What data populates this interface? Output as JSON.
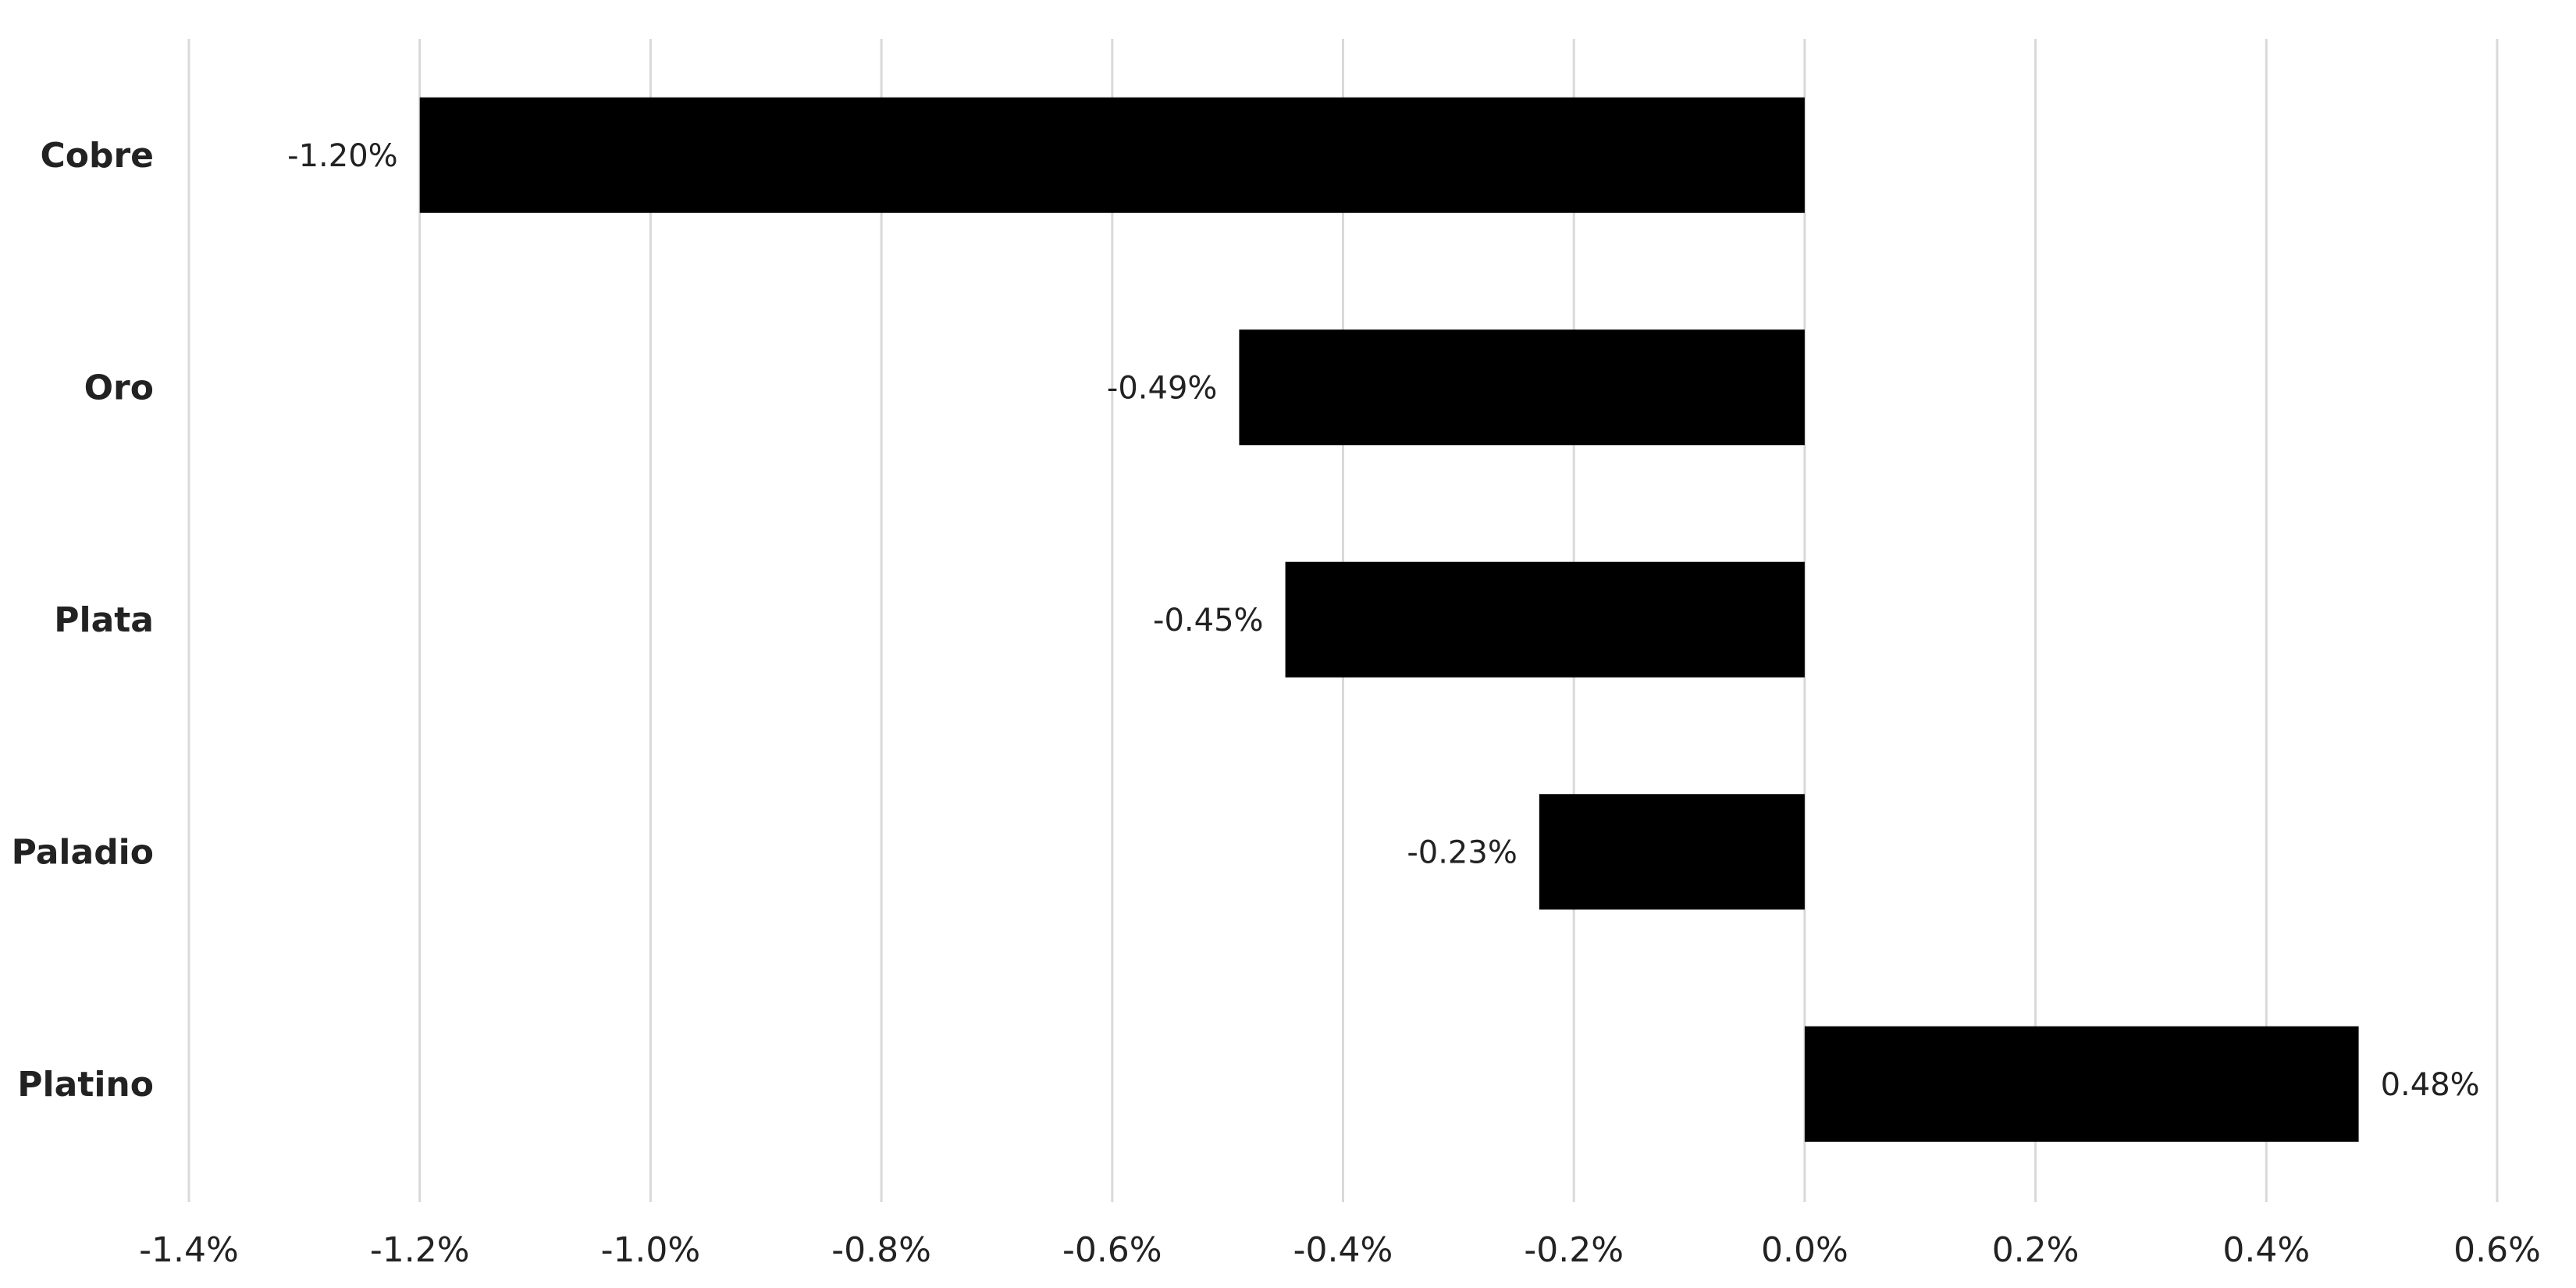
{
  "chart_data": {
    "type": "bar",
    "orientation": "horizontal",
    "categories": [
      "Cobre",
      "Oro",
      "Plata",
      "Paladio",
      "Platino"
    ],
    "values": [
      -1.2,
      -0.49,
      -0.45,
      -0.23,
      0.48
    ],
    "value_labels": [
      "-1.20%",
      "-0.49%",
      "-0.45%",
      "-0.23%",
      "0.48%"
    ],
    "xlim": [
      -1.4,
      0.6
    ],
    "x_ticks": [
      -1.4,
      -1.2,
      -1.0,
      -0.8,
      -0.6,
      -0.4,
      -0.2,
      0.0,
      0.2,
      0.4,
      0.6
    ],
    "x_tick_labels": [
      "-1.4%",
      "-1.2%",
      "-1.0%",
      "-0.8%",
      "-0.6%",
      "-0.4%",
      "-0.2%",
      "0.0%",
      "0.2%",
      "0.4%",
      "0.6%"
    ],
    "grid": true,
    "legend": "none",
    "bar_color": "#000000",
    "grid_color": "#d9d9d9",
    "text_color": "#222222"
  }
}
